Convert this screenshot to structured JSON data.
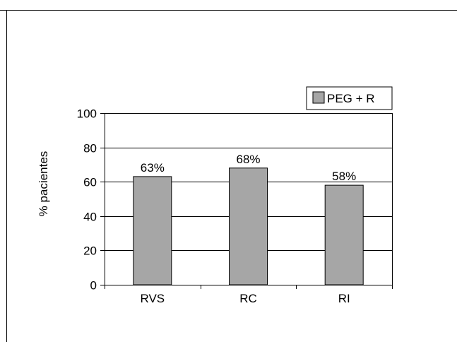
{
  "chart_data": {
    "type": "bar",
    "categories": [
      "RVS",
      "RC",
      "RI"
    ],
    "series": [
      {
        "name": "PEG + R",
        "values": [
          63,
          68,
          58
        ],
        "labels": [
          "63%",
          "68%",
          "58%"
        ],
        "color": "#a6a6a6"
      }
    ],
    "title": "",
    "xlabel": "",
    "ylabel": "% pacientes",
    "ylim": [
      0,
      100
    ],
    "yticks": [
      0,
      20,
      40,
      60,
      80,
      100
    ],
    "grid": true,
    "legend": "top-right"
  }
}
